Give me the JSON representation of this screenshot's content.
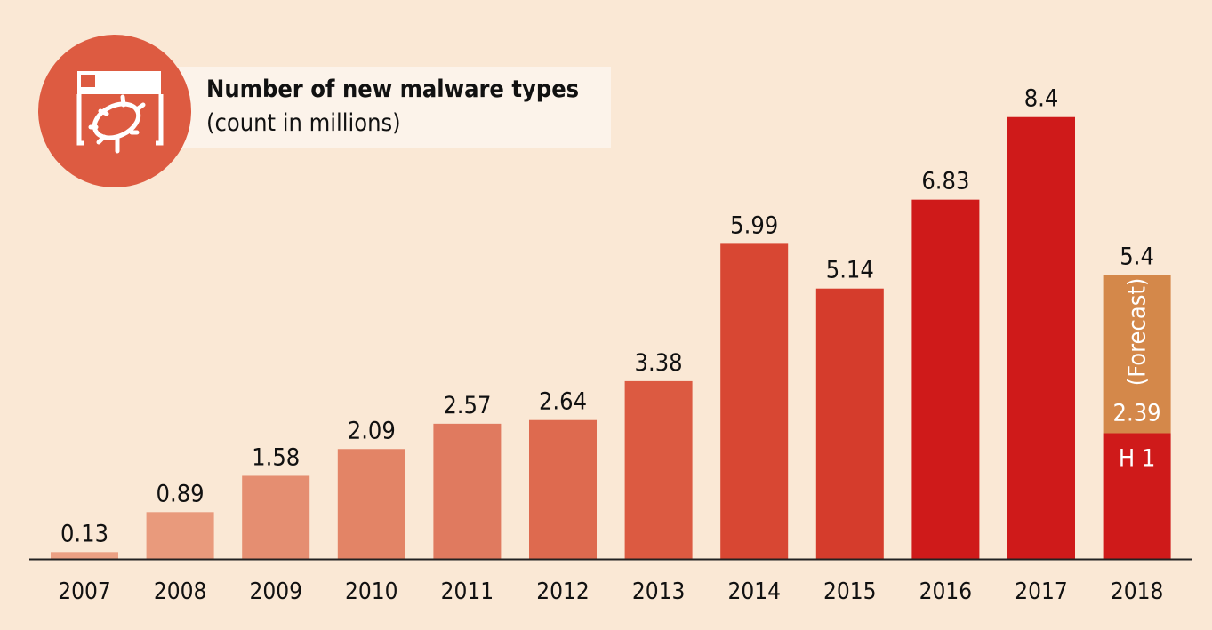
{
  "chart_data": {
    "type": "bar",
    "title": "Number of new malware types",
    "subtitle": "(count in millions)",
    "categories": [
      "2007",
      "2008",
      "2009",
      "2010",
      "2011",
      "2012",
      "2013",
      "2014",
      "2015",
      "2016",
      "2017",
      "2018"
    ],
    "values": [
      0.13,
      0.89,
      1.58,
      2.09,
      2.57,
      2.64,
      3.38,
      5.99,
      5.14,
      6.83,
      8.4,
      5.4
    ],
    "labels": [
      "0.13",
      "0.89",
      "1.58",
      "2.09",
      "2.57",
      "2.64",
      "3.38",
      "5.99",
      "5.14",
      "6.83",
      "8.4",
      "5.4"
    ],
    "colors": [
      "#eba083",
      "#e99a7c",
      "#e58e71",
      "#e38466",
      "#e07a5f",
      "#de6a4f",
      "#dc5a41",
      "#d84733",
      "#d53c2c",
      "#cf1a1a",
      "#cf1a1a",
      "#cf1a1a"
    ],
    "h1_2018": {
      "value": 2.39,
      "label": "2.39",
      "segment_label": "H 1",
      "color": "#cf1a1a"
    },
    "forecast_2018": {
      "label": "(Forecast)",
      "color": "#d4884a"
    },
    "grid": false
  },
  "icon": "browser-bug-icon"
}
